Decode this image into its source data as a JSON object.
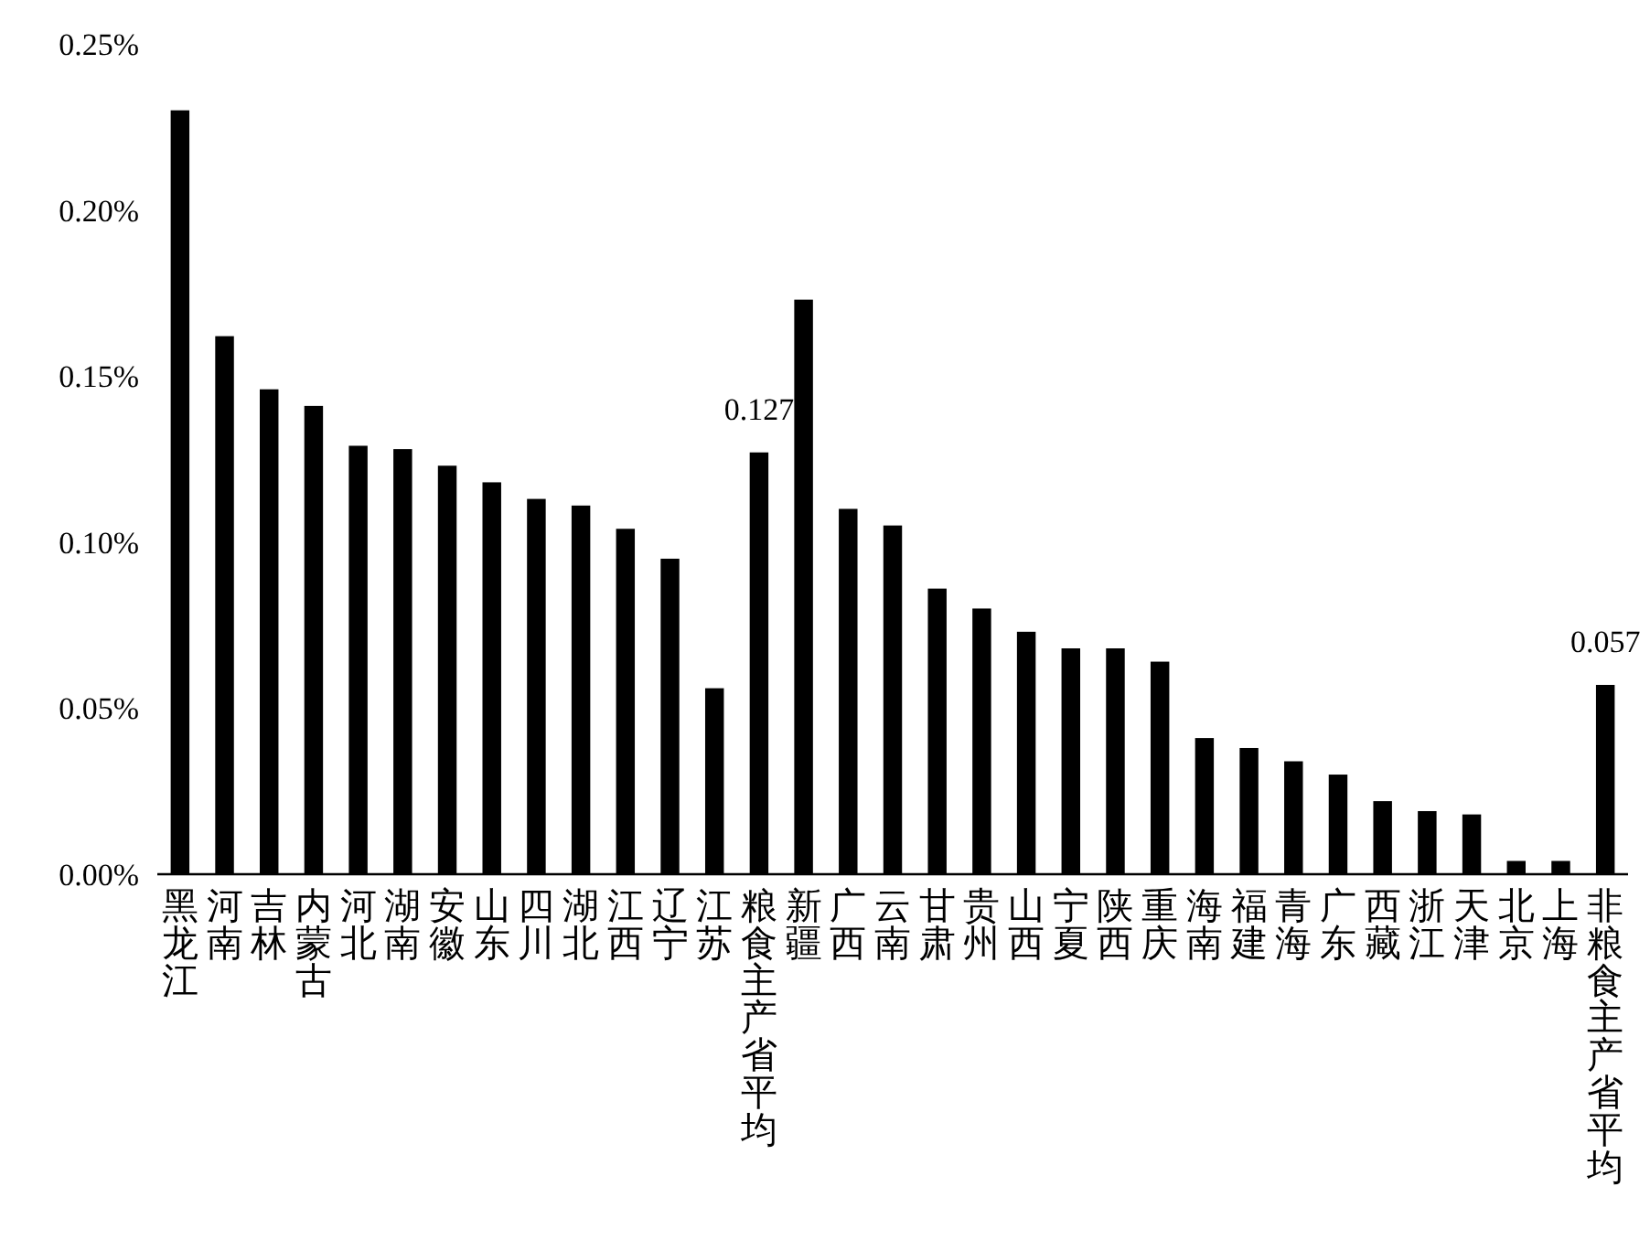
{
  "chart_data": {
    "type": "bar",
    "categories": [
      "黑龙江",
      "河南",
      "吉林",
      "内蒙古",
      "河北",
      "湖南",
      "安徽",
      "山东",
      "四川",
      "湖北",
      "江西",
      "辽宁",
      "江苏",
      "粮食主产省平均",
      "新疆",
      "广西",
      "云南",
      "甘肃",
      "贵州",
      "山西",
      "宁夏",
      "陕西",
      "重庆",
      "海南",
      "福建",
      "青海",
      "广东",
      "西藏",
      "浙江",
      "天津",
      "北京",
      "上海",
      "非粮食主产省平均"
    ],
    "values": [
      0.23,
      0.162,
      0.146,
      0.141,
      0.129,
      0.128,
      0.123,
      0.118,
      0.113,
      0.111,
      0.104,
      0.095,
      0.056,
      0.127,
      0.173,
      0.11,
      0.105,
      0.086,
      0.08,
      0.073,
      0.068,
      0.068,
      0.064,
      0.041,
      0.038,
      0.034,
      0.03,
      0.022,
      0.019,
      0.018,
      0.004,
      0.004,
      0.057
    ],
    "value_labels": [
      null,
      null,
      null,
      null,
      null,
      null,
      null,
      null,
      null,
      null,
      null,
      null,
      null,
      "0.127",
      null,
      null,
      null,
      null,
      null,
      null,
      null,
      null,
      null,
      null,
      null,
      null,
      null,
      null,
      null,
      null,
      null,
      null,
      "0.057"
    ],
    "color": "#000000",
    "ylim": [
      0,
      0.25
    ],
    "yticks": [
      {
        "value": 0,
        "label": "0.00%"
      },
      {
        "value": 0.05,
        "label": "0.05%"
      },
      {
        "value": 0.1,
        "label": "0.10%"
      },
      {
        "value": 0.15,
        "label": "0.15%"
      },
      {
        "value": 0.2,
        "label": "0.20%"
      },
      {
        "value": 0.25,
        "label": "0.25%"
      }
    ],
    "grid": false
  }
}
